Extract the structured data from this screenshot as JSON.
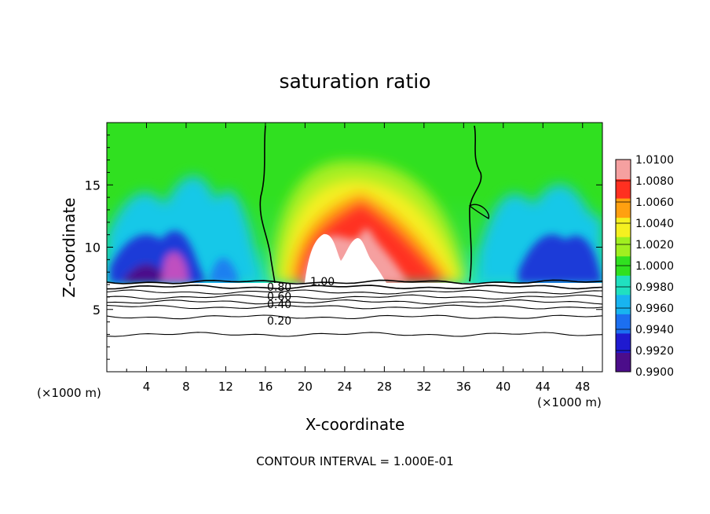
{
  "chart_data": {
    "type": "heatmap",
    "title": "saturation ratio",
    "xlabel": "X-coordinate",
    "ylabel": "Z-coordinate",
    "x_unit_left": "(×1000 m)",
    "x_unit_right": "(×1000 m)",
    "footer": "CONTOUR INTERVAL = 1.000E-01",
    "xlim": [
      0,
      50
    ],
    "ylim": [
      0,
      20
    ],
    "x_ticks": [
      4,
      8,
      12,
      16,
      20,
      24,
      28,
      32,
      36,
      40,
      44,
      48
    ],
    "y_ticks": [
      5,
      10,
      15
    ],
    "colorbar": {
      "min": 0.99,
      "max": 1.01,
      "labels": [
        "1.0100",
        "1.0080",
        "1.0060",
        "1.0040",
        "1.0020",
        "1.0000",
        "0.9980",
        "0.9960",
        "0.9940",
        "0.9920",
        "0.9900"
      ],
      "colors": [
        "#4b0d8a",
        "#1f1ad0",
        "#1c6ff0",
        "#18b4f0",
        "#20e0c0",
        "#30e020",
        "#a0ef20",
        "#f5f020",
        "#ffa010",
        "#ff3020",
        "#f5a0a0"
      ]
    },
    "contour_labels": [
      "1.00",
      "0.80",
      "0.60",
      "0.40",
      "0.20"
    ],
    "contour_levels_z": [
      7.2,
      6.8,
      6.4,
      6.0,
      5.6,
      5.2,
      4.4,
      3.0
    ]
  }
}
